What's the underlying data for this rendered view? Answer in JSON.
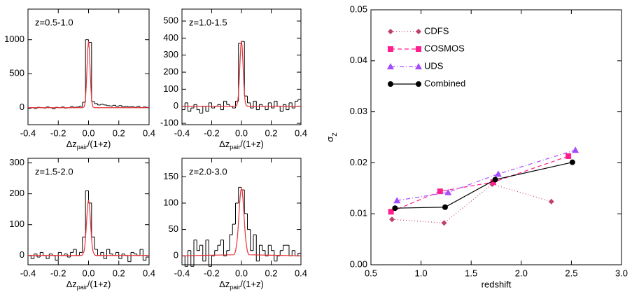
{
  "chart_data": [
    {
      "type": "histogram",
      "title": "z=0.5-1.0",
      "bins": [
        -0.4,
        -0.38,
        -0.36,
        -0.34,
        -0.32,
        -0.3,
        -0.28,
        -0.26,
        -0.24,
        -0.22,
        -0.2,
        -0.18,
        -0.16,
        -0.14,
        -0.12,
        -0.1,
        -0.08,
        -0.06,
        -0.04,
        -0.02,
        0,
        0.02,
        0.04,
        0.06,
        0.08,
        0.1,
        0.12,
        0.14,
        0.16,
        0.18,
        0.2,
        0.22,
        0.24,
        0.26,
        0.28,
        0.3,
        0.32,
        0.34,
        0.36,
        0.38,
        0.4
      ],
      "values": [
        -10,
        0,
        -10,
        5,
        0,
        -5,
        10,
        0,
        -15,
        5,
        0,
        10,
        -5,
        0,
        15,
        5,
        10,
        20,
        80,
        1000,
        960,
        90,
        60,
        40,
        50,
        40,
        30,
        25,
        35,
        20,
        30,
        10,
        20,
        10,
        15,
        5,
        20,
        0,
        10,
        5
      ],
      "color": "#000000",
      "fit": {
        "color": "#e8333a",
        "x": [
          -0.4,
          -0.05,
          -0.04,
          -0.03,
          -0.025,
          -0.02,
          -0.015,
          -0.01,
          -0.005,
          0,
          0.005,
          0.01,
          0.015,
          0.02,
          0.025,
          0.03,
          0.04,
          0.05,
          0.4
        ],
        "values": [
          0,
          0,
          0,
          11,
          43,
          133,
          318,
          594,
          865,
          980,
          865,
          594,
          318,
          133,
          43,
          11,
          0,
          0,
          0
        ]
      },
      "xlabel": [
        "Δz",
        "pair",
        "/(1+z)"
      ],
      "xlim": [
        -0.4,
        0.4
      ],
      "xticks": [
        -0.4,
        -0.2,
        {
          "value": 0,
          "label": "0.0"
        },
        0.2,
        0.4
      ],
      "ylim": [
        -250,
        1450
      ],
      "yticks": [
        0,
        500,
        1000
      ]
    },
    {
      "type": "histogram",
      "title": "z=1.0-1.5",
      "bins": [
        -0.4,
        -0.38,
        -0.36,
        -0.34,
        -0.32,
        -0.3,
        -0.28,
        -0.26,
        -0.24,
        -0.22,
        -0.2,
        -0.18,
        -0.16,
        -0.14,
        -0.12,
        -0.1,
        -0.08,
        -0.06,
        -0.04,
        -0.02,
        0,
        0.02,
        0.04,
        0.06,
        0.08,
        0.1,
        0.12,
        0.14,
        0.16,
        0.18,
        0.2,
        0.22,
        0.24,
        0.26,
        0.28,
        0.3,
        0.32,
        0.34,
        0.36,
        0.38,
        0.4
      ],
      "values": [
        -20,
        20,
        -30,
        -10,
        10,
        -20,
        -40,
        0,
        -30,
        20,
        -10,
        0,
        10,
        -20,
        30,
        10,
        0,
        -10,
        30,
        370,
        380,
        60,
        20,
        -10,
        30,
        -20,
        10,
        0,
        -20,
        20,
        -10,
        30,
        0,
        -30,
        10,
        -20,
        20,
        -10,
        30,
        40
      ],
      "color": "#000000",
      "fit": {
        "color": "#e8333a",
        "x": [
          -0.4,
          -0.05,
          -0.04,
          -0.03,
          -0.025,
          -0.02,
          -0.015,
          -0.01,
          -0.005,
          0,
          0.005,
          0.01,
          0.015,
          0.02,
          0.025,
          0.03,
          0.04,
          0.05,
          0.4
        ],
        "values": [
          0,
          0,
          0,
          9,
          29,
          74,
          152,
          255,
          347,
          385,
          347,
          255,
          152,
          74,
          29,
          9,
          0,
          0,
          0
        ]
      },
      "xlabel": [
        "Δz",
        "pair",
        "/(1+z)"
      ],
      "xlim": [
        -0.4,
        0.4
      ],
      "xticks": [
        -0.4,
        -0.2,
        {
          "value": 0,
          "label": "0.0"
        },
        0.2,
        0.4
      ],
      "ylim": [
        -108,
        570
      ],
      "yticks": [
        -100,
        0,
        100,
        200,
        300,
        400,
        500
      ]
    },
    {
      "type": "histogram",
      "title": "z=1.5-2.0",
      "bins": [
        -0.4,
        -0.38,
        -0.36,
        -0.34,
        -0.32,
        -0.3,
        -0.28,
        -0.26,
        -0.24,
        -0.22,
        -0.2,
        -0.18,
        -0.16,
        -0.14,
        -0.12,
        -0.1,
        -0.08,
        -0.06,
        -0.04,
        -0.02,
        0,
        0.02,
        0.04,
        0.06,
        0.08,
        0.1,
        0.12,
        0.14,
        0.16,
        0.18,
        0.2,
        0.22,
        0.24,
        0.26,
        0.28,
        0.3,
        0.32,
        0.34,
        0.36,
        0.38,
        0.4
      ],
      "values": [
        0,
        -10,
        5,
        -5,
        10,
        0,
        -10,
        5,
        0,
        -15,
        10,
        0,
        5,
        -5,
        10,
        20,
        0,
        10,
        60,
        210,
        170,
        60,
        20,
        0,
        10,
        -10,
        20,
        5,
        0,
        10,
        -10,
        5,
        0,
        -20,
        10,
        5,
        0,
        20,
        -15,
        -5
      ],
      "color": "#000000",
      "fit": {
        "color": "#e8333a",
        "x": [
          -0.4,
          -0.05,
          -0.04,
          -0.03,
          -0.025,
          -0.02,
          -0.015,
          -0.01,
          -0.005,
          0,
          0.005,
          0.01,
          0.015,
          0.02,
          0.025,
          0.03,
          0.04,
          0.05,
          0.4
        ],
        "values": [
          0,
          0,
          2,
          13,
          28,
          55,
          93,
          134,
          167,
          180,
          167,
          134,
          93,
          55,
          28,
          13,
          2,
          0,
          0
        ]
      },
      "xlabel": [
        "Δz",
        "pair",
        "/(1+z)"
      ],
      "xlim": [
        -0.4,
        0.4
      ],
      "xticks": [
        -0.4,
        -0.2,
        {
          "value": 0,
          "label": "0.0"
        },
        0.2,
        0.4
      ],
      "ylim": [
        -30,
        315
      ],
      "yticks": [
        0,
        100,
        200,
        300
      ]
    },
    {
      "type": "histogram",
      "title": "z=2.0-3.0",
      "bins": [
        -0.4,
        -0.38,
        -0.36,
        -0.34,
        -0.32,
        -0.3,
        -0.28,
        -0.26,
        -0.24,
        -0.22,
        -0.2,
        -0.18,
        -0.16,
        -0.14,
        -0.12,
        -0.1,
        -0.08,
        -0.06,
        -0.04,
        -0.02,
        0,
        0.02,
        0.04,
        0.06,
        0.08,
        0.1,
        0.12,
        0.14,
        0.16,
        0.18,
        0.2,
        0.22,
        0.24,
        0.26,
        0.28,
        0.3,
        0.32,
        0.34,
        0.36,
        0.38,
        0.4
      ],
      "values": [
        0,
        -20,
        10,
        -20,
        30,
        10,
        20,
        -10,
        30,
        -20,
        0,
        10,
        20,
        30,
        0,
        10,
        40,
        60,
        100,
        130,
        125,
        80,
        50,
        10,
        40,
        -10,
        20,
        10,
        0,
        20,
        10,
        -10,
        0,
        10,
        20,
        20,
        0,
        10,
        0,
        5
      ],
      "color": "#000000",
      "fit": {
        "color": "#e8333a",
        "x": [
          -0.4,
          -0.05,
          -0.04,
          -0.03,
          -0.025,
          -0.02,
          -0.015,
          -0.01,
          -0.005,
          0,
          0.005,
          0.01,
          0.015,
          0.02,
          0.025,
          0.03,
          0.04,
          0.05,
          0.4
        ],
        "values": [
          0,
          2,
          8,
          27,
          43,
          64,
          87,
          108,
          123,
          128,
          123,
          108,
          87,
          64,
          43,
          27,
          8,
          2,
          0
        ]
      },
      "xlabel": [
        "Δz",
        "pair",
        "/(1+z)"
      ],
      "xlim": [
        -0.4,
        0.4
      ],
      "xticks": [
        -0.4,
        -0.2,
        {
          "value": 0,
          "label": "0.0"
        },
        0.2,
        0.4
      ],
      "ylim": [
        -17,
        185
      ],
      "yticks": [
        0,
        50,
        100,
        150
      ]
    },
    {
      "type": "line",
      "xlabel": "redshift",
      "ylabel": [
        "σ",
        "z"
      ],
      "legend": "upper left",
      "xlim": [
        0.5,
        3.0
      ],
      "xticks": [
        0.5,
        {
          "value": 1,
          "label": "1.0"
        },
        1.5,
        {
          "value": 2,
          "label": "2.0"
        },
        2.5,
        {
          "value": 3,
          "label": "3.0"
        }
      ],
      "ylim": [
        0,
        0.05
      ],
      "yticks": [
        {
          "value": 0,
          "label": "0.00"
        },
        0.01,
        0.02,
        0.03,
        0.04,
        0.05
      ],
      "series": [
        {
          "name": "CDFS",
          "color": "#c0406e",
          "dash": "dotted",
          "marker": "diamond",
          "x": [
            0.71,
            1.23,
            1.71,
            2.3
          ],
          "values": [
            0.0089,
            0.0082,
            0.0158,
            0.0124
          ]
        },
        {
          "name": "COSMOS",
          "color": "#ff1e8c",
          "dash": "dashed",
          "marker": "square",
          "x": [
            0.7,
            1.19,
            1.72,
            2.47
          ],
          "values": [
            0.0104,
            0.0144,
            0.0162,
            0.0213
          ]
        },
        {
          "name": "UDS",
          "color": "#a64cff",
          "dash": "dash-dot",
          "marker": "triangle",
          "x": [
            0.76,
            1.27,
            1.77,
            2.54
          ],
          "values": [
            0.0126,
            0.0142,
            0.0178,
            0.0225
          ]
        },
        {
          "name": "Combined",
          "color": "#000000",
          "dash": "solid",
          "marker": "circle",
          "x": [
            0.74,
            1.24,
            1.74,
            2.51
          ],
          "values": [
            0.0111,
            0.0113,
            0.0167,
            0.0201
          ]
        }
      ]
    }
  ]
}
